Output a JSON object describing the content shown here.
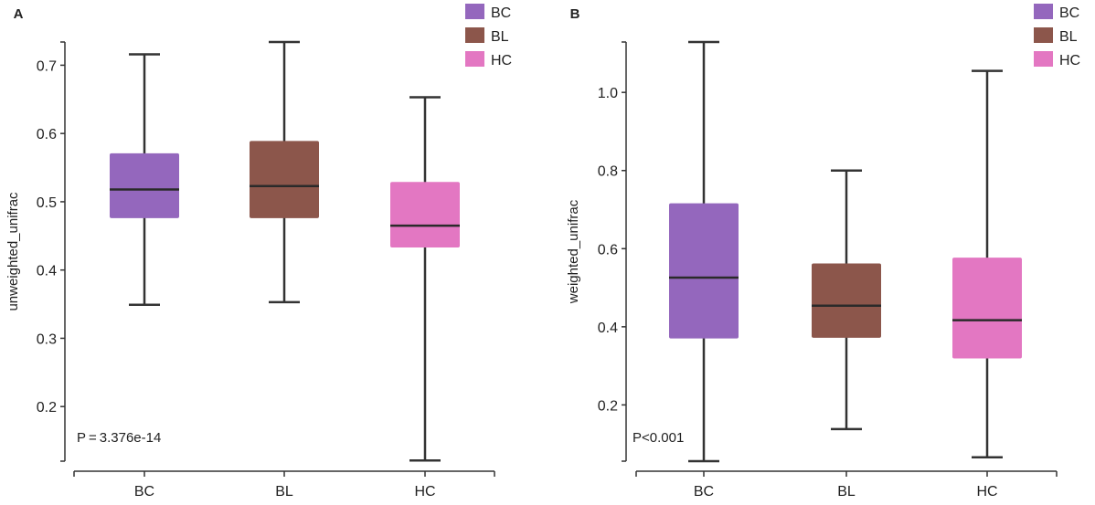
{
  "chart_data": [
    {
      "type": "box",
      "panel_label": "A",
      "ylabel": "unweighted_unifrac",
      "xlabel": "",
      "categories": [
        "BC",
        "BL",
        "HC"
      ],
      "ylim": [
        0.12,
        0.734
      ],
      "yticks": [
        0.2,
        0.3,
        0.4,
        0.5,
        0.6,
        0.7
      ],
      "ytick_labels": [
        "0.2",
        "0.3",
        "0.4",
        "0.5",
        "0.6",
        "0.7"
      ],
      "boxes": [
        {
          "min": 0.349,
          "q1": 0.476,
          "median": 0.518,
          "q3": 0.571,
          "max": 0.716
        },
        {
          "min": 0.353,
          "q1": 0.476,
          "median": 0.523,
          "q3": 0.589,
          "max": 0.734
        },
        {
          "min": 0.121,
          "q1": 0.433,
          "median": 0.465,
          "q3": 0.529,
          "max": 0.653
        }
      ],
      "annotation": "P = 3.376e-14",
      "legend": {
        "entries": [
          "BC",
          "BL",
          "HC"
        ],
        "placement": "top-right"
      },
      "colors": [
        "#9467bd",
        "#8c564b",
        "#e377c2"
      ],
      "grid": false
    },
    {
      "type": "box",
      "panel_label": "B",
      "ylabel": "weighted_unifrac",
      "xlabel": "",
      "categories": [
        "BC",
        "BL",
        "HC"
      ],
      "ylim": [
        0.056,
        1.129
      ],
      "yticks": [
        0.2,
        0.4,
        0.6,
        0.8,
        1.0
      ],
      "ytick_labels": [
        "0.2",
        "0.4",
        "0.6",
        "0.8",
        "1.0"
      ],
      "boxes": [
        {
          "min": 0.056,
          "q1": 0.37,
          "median": 0.526,
          "q3": 0.716,
          "max": 1.129
        },
        {
          "min": 0.138,
          "q1": 0.372,
          "median": 0.454,
          "q3": 0.562,
          "max": 0.8
        },
        {
          "min": 0.066,
          "q1": 0.319,
          "median": 0.417,
          "q3": 0.577,
          "max": 1.055
        }
      ],
      "annotation": "P<0.001",
      "legend": {
        "entries": [
          "BC",
          "BL",
          "HC"
        ],
        "placement": "top-right"
      },
      "colors": [
        "#9467bd",
        "#8c564b",
        "#e377c2"
      ],
      "grid": false
    }
  ]
}
